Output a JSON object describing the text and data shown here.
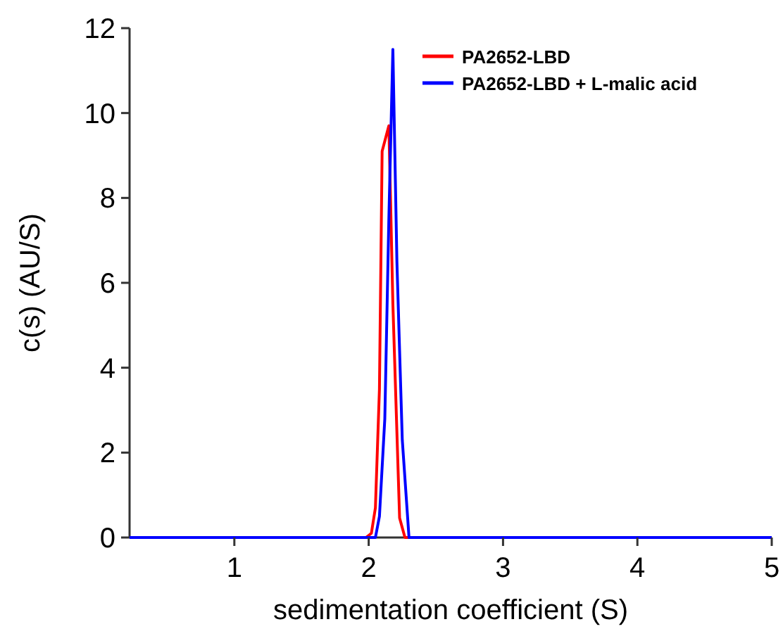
{
  "chart_data": {
    "type": "line",
    "xlabel": "sedimentation coefficient (S)",
    "ylabel": "c(s) (AU/S)",
    "xlim": [
      0.22,
      5
    ],
    "ylim": [
      0,
      12
    ],
    "xticks": [
      1,
      2,
      3,
      4,
      5
    ],
    "yticks": [
      0,
      2,
      4,
      6,
      8,
      10,
      12
    ],
    "legend": "top right",
    "grid": false,
    "series": [
      {
        "name": "PA2652-LBD",
        "color": "#ff0000",
        "x": [
          0.22,
          1.98,
          2.02,
          2.05,
          2.08,
          2.1,
          2.15,
          2.18,
          2.23,
          2.27,
          5
        ],
        "values": [
          0,
          0,
          0.1,
          0.7,
          3.5,
          9.1,
          9.7,
          5.5,
          0.46,
          0,
          0
        ]
      },
      {
        "name": "PA2652-LBD + L-malic acid",
        "color": "#0000ff",
        "x": [
          0.22,
          2.05,
          2.08,
          2.12,
          2.15,
          2.18,
          2.21,
          2.25,
          2.3,
          5
        ],
        "values": [
          0,
          0,
          0.5,
          2.8,
          7.5,
          11.5,
          6.5,
          2.3,
          0,
          0
        ]
      }
    ]
  }
}
